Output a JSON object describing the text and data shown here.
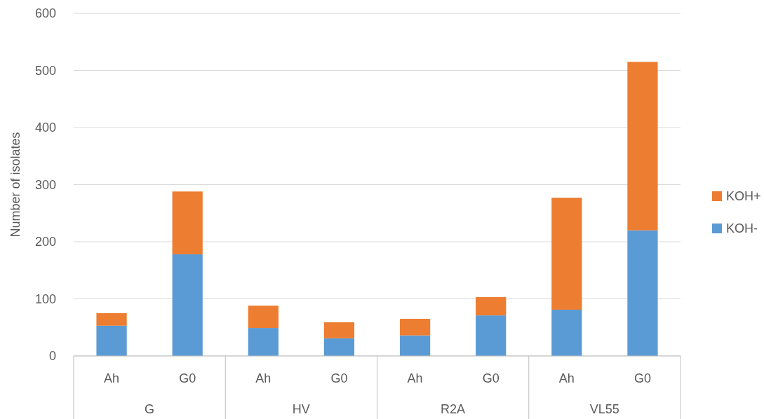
{
  "chart_data": {
    "type": "bar",
    "stacked": true,
    "ylabel": "Number of isolates",
    "categories": [
      "Ah",
      "G0",
      "Ah",
      "G0",
      "Ah",
      "G0",
      "Ah",
      "G0"
    ],
    "annotations": [
      "G",
      "HV",
      "R2A",
      "VL55"
    ],
    "series": [
      {
        "name": "KOH-",
        "color": "#5b9bd5",
        "values": [
          53,
          178,
          49,
          31,
          36,
          71,
          81,
          220
        ]
      },
      {
        "name": "KOH+",
        "color": "#ed7d31",
        "values": [
          22,
          110,
          39,
          28,
          29,
          32,
          196,
          295
        ]
      }
    ],
    "ylim": [
      0,
      600
    ],
    "yticks": [
      0,
      100,
      200,
      300,
      400,
      500,
      600
    ],
    "grid": "y",
    "legend": "right"
  }
}
